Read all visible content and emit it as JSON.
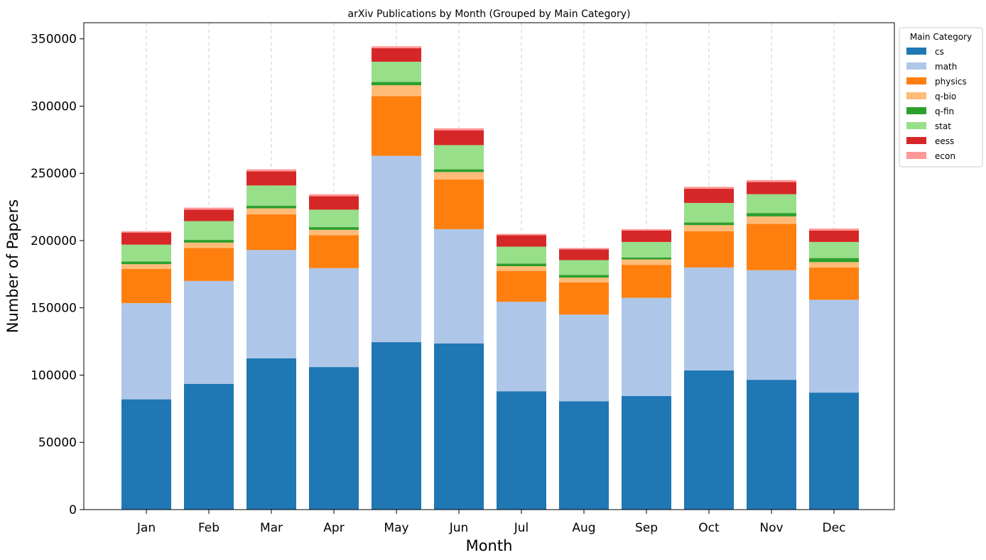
{
  "chart_data": {
    "type": "bar",
    "stacked": true,
    "title": "arXiv Publications by Month (Grouped by Main Category)",
    "xlabel": "Month",
    "ylabel": "Number of Papers",
    "categories": [
      "Jan",
      "Feb",
      "Mar",
      "Apr",
      "May",
      "Jun",
      "Jul",
      "Aug",
      "Sep",
      "Oct",
      "Nov",
      "Dec"
    ],
    "ylim": [
      0,
      362000
    ],
    "yticks": [
      0,
      50000,
      100000,
      150000,
      200000,
      250000,
      300000,
      350000
    ],
    "ytick_labels": [
      "0",
      "50000",
      "100000",
      "150000",
      "200000",
      "250000",
      "300000",
      "350000"
    ],
    "grid": "x-dashed",
    "legend": {
      "title": "Main Category",
      "position": "outside-top-right"
    },
    "series": [
      {
        "name": "cs",
        "color": "#1f77b4",
        "values": [
          82000,
          93500,
          112500,
          106000,
          124500,
          123500,
          88000,
          80500,
          84500,
          103500,
          96500,
          87000
        ]
      },
      {
        "name": "math",
        "color": "#aec7e8",
        "values": [
          71500,
          76500,
          80500,
          73500,
          138500,
          85000,
          66500,
          64500,
          73000,
          76500,
          81500,
          69000
        ]
      },
      {
        "name": "physics",
        "color": "#ff7f0e",
        "values": [
          25500,
          24500,
          26500,
          24500,
          44500,
          37000,
          23000,
          24000,
          24500,
          27000,
          34500,
          24000
        ]
      },
      {
        "name": "q-bio",
        "color": "#ffbb78",
        "values": [
          3500,
          4000,
          4500,
          4000,
          8000,
          5500,
          3500,
          3500,
          4000,
          4500,
          5500,
          4000
        ]
      },
      {
        "name": "q-fin",
        "color": "#2ca02c",
        "values": [
          2000,
          2000,
          2000,
          2000,
          2500,
          2000,
          2000,
          2000,
          1500,
          2000,
          2500,
          3000
        ]
      },
      {
        "name": "stat",
        "color": "#98df8a",
        "values": [
          12500,
          14000,
          15000,
          13000,
          15000,
          18000,
          12500,
          11000,
          11500,
          14500,
          14000,
          12000
        ]
      },
      {
        "name": "eess",
        "color": "#d62728",
        "values": [
          9000,
          8500,
          10500,
          10000,
          10000,
          11000,
          8500,
          8000,
          8500,
          10500,
          9000,
          8500
        ]
      },
      {
        "name": "econ",
        "color": "#ff9896",
        "values": [
          1000,
          1500,
          1500,
          1500,
          1500,
          1500,
          1000,
          1000,
          1000,
          1500,
          1500,
          1500
        ]
      }
    ]
  }
}
